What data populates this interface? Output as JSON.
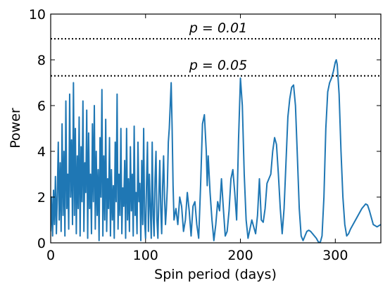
{
  "chart_data": {
    "type": "line",
    "x_label": "Spin period (days)",
    "y_label": "Power",
    "xlim": [
      0,
      348
    ],
    "ylim": [
      0,
      10
    ],
    "xticks": [
      0,
      100,
      200,
      300
    ],
    "yticks": [
      0,
      2,
      4,
      6,
      8,
      10
    ],
    "hlines": [
      {
        "value": 8.92,
        "label": "p = 0.01"
      },
      {
        "value": 7.3,
        "label": "p = 0.05"
      }
    ],
    "x": [
      0,
      1,
      2,
      3,
      4,
      5,
      6,
      7,
      8,
      9,
      10,
      11,
      12,
      13,
      14,
      15,
      16,
      17,
      18,
      19,
      20,
      21,
      22,
      23,
      24,
      25,
      26,
      27,
      28,
      29,
      30,
      31,
      32,
      33,
      34,
      35,
      36,
      37,
      38,
      39,
      40,
      41,
      42,
      43,
      44,
      45,
      46,
      47,
      48,
      49,
      50,
      51,
      52,
      53,
      54,
      55,
      56,
      57,
      58,
      59,
      60,
      61,
      62,
      63,
      64,
      65,
      66,
      67,
      68,
      69,
      70,
      71,
      72,
      73,
      74,
      75,
      76,
      77,
      78,
      79,
      80,
      81,
      82,
      83,
      84,
      85,
      86,
      87,
      88,
      89,
      90,
      91,
      92,
      93,
      94,
      95,
      96,
      97,
      98,
      99,
      100,
      101,
      102,
      103,
      104,
      105,
      106,
      107,
      108,
      109,
      110,
      111,
      112,
      113,
      114,
      115,
      116,
      117,
      118,
      119,
      120,
      121,
      122,
      123,
      124,
      125,
      126,
      127,
      128,
      129,
      130,
      132,
      134,
      136,
      138,
      140,
      142,
      144,
      146,
      148,
      150,
      152,
      154,
      156,
      158,
      160,
      162,
      164,
      165,
      166,
      168,
      170,
      172,
      174,
      176,
      178,
      180,
      182,
      184,
      186,
      188,
      190,
      192,
      194,
      196,
      198,
      200,
      202,
      204,
      206,
      208,
      210,
      212,
      214,
      216,
      218,
      220,
      222,
      224,
      226,
      228,
      230,
      232,
      234,
      236,
      238,
      240,
      242,
      244,
      246,
      248,
      250,
      252,
      254,
      256,
      258,
      260,
      262,
      264,
      266,
      268,
      270,
      272,
      274,
      276,
      278,
      280,
      282,
      284,
      286,
      288,
      290,
      292,
      294,
      296,
      298,
      300,
      301,
      302,
      304,
      306,
      308,
      310,
      312,
      314,
      316,
      320,
      324,
      328,
      332,
      334,
      336,
      340,
      344,
      348
    ],
    "series": [
      {
        "color": "#1f77b4",
        "values": [
          0.5,
          2,
          0.3,
          2.3,
          0.8,
          2.9,
          0.4,
          2.1,
          4.4,
          1.0,
          3.5,
          0.5,
          5.2,
          1.2,
          4.0,
          0.3,
          6.2,
          1.5,
          3.0,
          0.6,
          6.5,
          2.0,
          4.5,
          0.8,
          7.0,
          1.2,
          5.0,
          0.4,
          3.8,
          1.5,
          5.5,
          0.3,
          4.2,
          1.8,
          6.2,
          0.5,
          3.5,
          2.2,
          5.8,
          0.2,
          4.8,
          1.5,
          3.0,
          0.4,
          5.2,
          1.8,
          6.0,
          0.6,
          4.0,
          1.2,
          3.2,
          0.1,
          4.6,
          2.0,
          6.7,
          0.3,
          3.8,
          1.0,
          5.4,
          0.5,
          2.8,
          1.5,
          4.6,
          0.3,
          3.2,
          1.0,
          2.5,
          0.2,
          4.4,
          1.8,
          6.5,
          0.6,
          3.0,
          1.2,
          5.0,
          0.4,
          2.4,
          1.6,
          3.6,
          0.2,
          5.0,
          1.0,
          2.8,
          0.5,
          4.2,
          1.4,
          3.0,
          0.3,
          5.1,
          1.2,
          2.2,
          0.4,
          4.4,
          1.8,
          2.6,
          0.1,
          3.6,
          0.8,
          5.0,
          1.0,
          0.2,
          2.6,
          4.4,
          0.5,
          3.0,
          1.5,
          0.2,
          4.4,
          1.2,
          0.3,
          2.8,
          4.0,
          1.0,
          0.2,
          2.0,
          3.6,
          1.5,
          0.4,
          2.5,
          3.8,
          2.0,
          0.8,
          1.5,
          2.5,
          4.4,
          5.0,
          6.0,
          7.0,
          5.0,
          2.5,
          1.0,
          1.5,
          0.8,
          2.0,
          1.6,
          0.5,
          1.0,
          2.2,
          1.4,
          0.3,
          1.6,
          1.8,
          0.8,
          0.2,
          2.5,
          5.2,
          5.6,
          4.0,
          2.5,
          3.8,
          2.2,
          1.0,
          0.1,
          0.8,
          1.8,
          1.4,
          2.8,
          1.5,
          0.3,
          0.5,
          1.4,
          2.8,
          3.2,
          2.2,
          1.0,
          4.5,
          7.2,
          6.0,
          3.0,
          1.0,
          0.2,
          0.6,
          1.0,
          0.7,
          0.4,
          1.2,
          2.8,
          1.0,
          0.9,
          1.5,
          2.6,
          2.8,
          3.0,
          4.0,
          4.6,
          4.3,
          3.0,
          1.5,
          0.4,
          1.5,
          3.5,
          5.5,
          6.3,
          6.8,
          6.9,
          6.0,
          3.8,
          1.5,
          0.3,
          0.1,
          0.3,
          0.5,
          0.55,
          0.5,
          0.4,
          0.3,
          0.2,
          0.05,
          0.0,
          0.3,
          2.0,
          5.0,
          6.6,
          7.0,
          7.2,
          7.5,
          7.9,
          8.0,
          7.8,
          6.5,
          4.0,
          2.0,
          0.8,
          0.3,
          0.4,
          0.6,
          0.9,
          1.2,
          1.5,
          1.7,
          1.65,
          1.4,
          0.8,
          0.7,
          0.8
        ]
      }
    ]
  }
}
